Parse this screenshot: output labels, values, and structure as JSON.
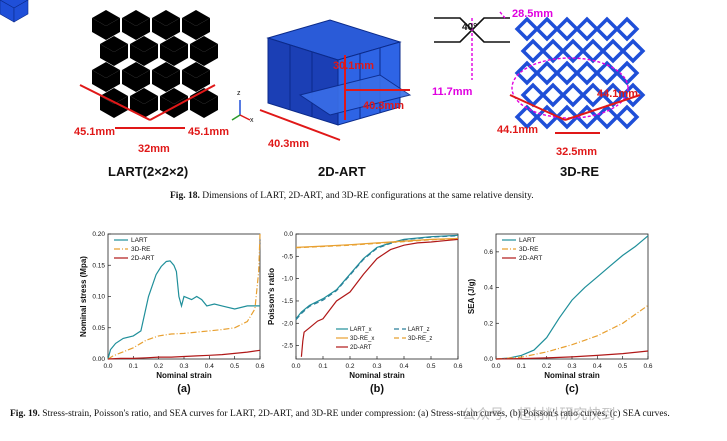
{
  "fig18": {
    "lart": {
      "dim_left": "45.1mm",
      "dim_right": "45.1mm",
      "dim_bottom": "32mm",
      "label": "LART(2×2×2)"
    },
    "art2d": {
      "dim_height": "30.1mm",
      "dim_depth": "40.3mm",
      "dim_width": "40.3mm",
      "label": "2D-ART"
    },
    "re3d": {
      "angle": "40°",
      "top_dim": "28.5mm",
      "side_dim": "11.7mm",
      "dim_right": "44.1mm",
      "dim_left": "44.1mm",
      "dim_bottom": "32.5mm",
      "label": "3D-RE"
    },
    "axis_x": "x",
    "axis_z": "z",
    "caption_prefix": "Fig. 18.",
    "caption": "Dimensions of LART, 2D-ART, and 3D-RE configurations at the same relative density."
  },
  "fig19": {
    "caption_prefix": "Fig. 19.",
    "caption": "Stress-strain, Poisson's ratio, and SEA curves for LART, 2D-ART, and 3D-RE under compression: (a) Stress-strain curves, (b) Poisson's ratio curves, (c) SEA curves.",
    "watermark": "公众号 · 超材料研究快到"
  },
  "colors": {
    "lart": "#1f8f9a",
    "re3d": "#e8a030",
    "art2d": "#b01818",
    "lart_z": "#2a7f9a",
    "re_z": "#e8a030",
    "red": "#e01818",
    "magenta": "#e000e0",
    "blue": "#1f4fd8"
  },
  "chart_data": [
    {
      "type": "line",
      "panel": "(a)",
      "xlabel": "Nominal strain",
      "ylabel": "Nominal stress (Mpa)",
      "xlim": [
        0,
        0.6
      ],
      "ylim": [
        0,
        0.2
      ],
      "xticks": [
        "0.0",
        "0.1",
        "0.2",
        "0.3",
        "0.4",
        "0.5",
        "0.6"
      ],
      "yticks": [
        "0.00",
        "0.05",
        "0.10",
        "0.15",
        "0.20"
      ],
      "legend": [
        "LART",
        "3D-RE",
        "2D-ART"
      ],
      "series": [
        {
          "name": "LART",
          "x": [
            0,
            0.01,
            0.03,
            0.06,
            0.1,
            0.13,
            0.16,
            0.19,
            0.21,
            0.23,
            0.245,
            0.26,
            0.27,
            0.28,
            0.29,
            0.3,
            0.33,
            0.35,
            0.37,
            0.39,
            0.42,
            0.45,
            0.5,
            0.55,
            0.6
          ],
          "y": [
            0,
            0.015,
            0.025,
            0.033,
            0.037,
            0.045,
            0.1,
            0.135,
            0.148,
            0.156,
            0.157,
            0.15,
            0.14,
            0.1,
            0.085,
            0.1,
            0.095,
            0.1,
            0.095,
            0.085,
            0.088,
            0.085,
            0.08,
            0.085,
            0.085
          ]
        },
        {
          "name": "3D-RE",
          "x": [
            0,
            0.02,
            0.05,
            0.1,
            0.15,
            0.2,
            0.25,
            0.3,
            0.35,
            0.4,
            0.45,
            0.5,
            0.55,
            0.58,
            0.595,
            0.6
          ],
          "y": [
            0,
            0.005,
            0.01,
            0.018,
            0.03,
            0.037,
            0.04,
            0.041,
            0.043,
            0.045,
            0.047,
            0.05,
            0.06,
            0.08,
            0.14,
            0.2
          ]
        },
        {
          "name": "2D-ART",
          "x": [
            0,
            0.05,
            0.1,
            0.15,
            0.2,
            0.25,
            0.3,
            0.35,
            0.4,
            0.45,
            0.5,
            0.55,
            0.6
          ],
          "y": [
            0,
            0.001,
            0.001,
            0.002,
            0.003,
            0.003,
            0.004,
            0.005,
            0.006,
            0.007,
            0.009,
            0.011,
            0.014
          ]
        }
      ]
    },
    {
      "type": "line",
      "panel": "(b)",
      "xlabel": "Nominal strain",
      "ylabel": "Poisson's ratio",
      "xlim": [
        0,
        0.6
      ],
      "ylim": [
        -2.8,
        0
      ],
      "xticks": [
        "0.0",
        "0.1",
        "0.2",
        "0.3",
        "0.4",
        "0.5",
        "0.6"
      ],
      "yticks": [
        "0.0",
        "-0.5",
        "-1.0",
        "-1.5",
        "-2.0",
        "-2.5"
      ],
      "legend": [
        "LART_x",
        "LART_z",
        "3D-RE_x",
        "3D-RE_z",
        "2D-ART"
      ],
      "series": [
        {
          "name": "LART_x",
          "x": [
            0,
            0.02,
            0.05,
            0.1,
            0.15,
            0.2,
            0.25,
            0.3,
            0.35,
            0.4,
            0.5,
            0.6
          ],
          "y": [
            -1.9,
            -1.75,
            -1.6,
            -1.45,
            -1.25,
            -0.9,
            -0.55,
            -0.3,
            -0.2,
            -0.12,
            -0.06,
            -0.03
          ]
        },
        {
          "name": "LART_z",
          "x": [
            0,
            0.02,
            0.05,
            0.1,
            0.15,
            0.2,
            0.25,
            0.3,
            0.35,
            0.4,
            0.5,
            0.6
          ],
          "y": [
            -1.92,
            -1.78,
            -1.62,
            -1.48,
            -1.27,
            -0.92,
            -0.57,
            -0.32,
            -0.21,
            -0.13,
            -0.07,
            -0.04
          ]
        },
        {
          "name": "3D-RE_x",
          "x": [
            0,
            0.1,
            0.2,
            0.3,
            0.4,
            0.5,
            0.6
          ],
          "y": [
            -0.3,
            -0.27,
            -0.24,
            -0.2,
            -0.16,
            -0.12,
            -0.1
          ]
        },
        {
          "name": "3D-RE_z",
          "x": [
            0,
            0.1,
            0.2,
            0.3,
            0.4,
            0.5,
            0.6
          ],
          "y": [
            -0.31,
            -0.28,
            -0.25,
            -0.21,
            -0.17,
            -0.13,
            -0.11
          ]
        },
        {
          "name": "2D-ART",
          "x": [
            0.02,
            0.025,
            0.03,
            0.05,
            0.08,
            0.1,
            0.15,
            0.2,
            0.25,
            0.3,
            0.35,
            0.4,
            0.45,
            0.5,
            0.55,
            0.6
          ],
          "y": [
            -2.75,
            -2.4,
            -2.2,
            -2.1,
            -1.95,
            -1.9,
            -1.5,
            -1.3,
            -0.9,
            -0.55,
            -0.35,
            -0.25,
            -0.2,
            -0.18,
            -0.15,
            -0.12
          ]
        }
      ]
    },
    {
      "type": "line",
      "panel": "(c)",
      "xlabel": "Nominal strain",
      "ylabel": "SEA (J/g)",
      "xlim": [
        0,
        0.6
      ],
      "ylim": [
        0,
        0.7
      ],
      "xticks": [
        "0.0",
        "0.1",
        "0.2",
        "0.3",
        "0.4",
        "0.5",
        "0.6"
      ],
      "yticks": [
        "0.0",
        "0.2",
        "0.4",
        "0.6"
      ],
      "legend": [
        "LART",
        "3D-RE",
        "2D-ART"
      ],
      "series": [
        {
          "name": "LART",
          "x": [
            0,
            0.05,
            0.1,
            0.15,
            0.2,
            0.25,
            0.3,
            0.35,
            0.4,
            0.45,
            0.5,
            0.55,
            0.6
          ],
          "y": [
            0,
            0.005,
            0.02,
            0.05,
            0.12,
            0.23,
            0.33,
            0.4,
            0.46,
            0.52,
            0.58,
            0.63,
            0.69
          ]
        },
        {
          "name": "3D-RE",
          "x": [
            0,
            0.1,
            0.2,
            0.3,
            0.4,
            0.5,
            0.6
          ],
          "y": [
            0,
            0.01,
            0.04,
            0.08,
            0.13,
            0.2,
            0.3
          ]
        },
        {
          "name": "2D-ART",
          "x": [
            0,
            0.1,
            0.2,
            0.3,
            0.4,
            0.5,
            0.6
          ],
          "y": [
            0,
            0.002,
            0.006,
            0.012,
            0.02,
            0.03,
            0.045
          ]
        }
      ]
    }
  ]
}
